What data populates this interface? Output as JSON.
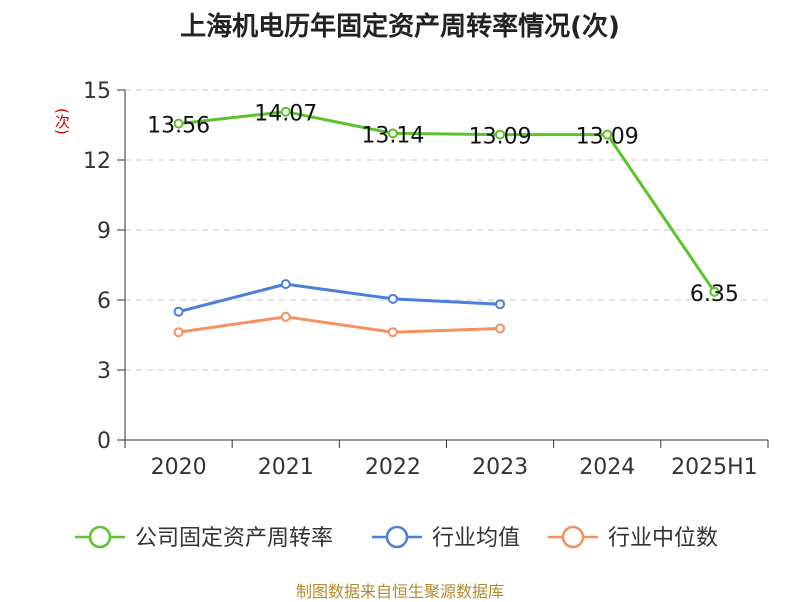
{
  "chart_data": {
    "type": "line",
    "title": "上海机电历年固定资产周转率情况(次)",
    "ylabel": "(次)",
    "ylim": [
      0,
      15
    ],
    "yticks": [
      0,
      3,
      6,
      9,
      12,
      15
    ],
    "grid": true,
    "legend_position": "bottom",
    "categories": [
      "2020",
      "2021",
      "2022",
      "2023",
      "2024",
      "2025H1"
    ],
    "series": [
      {
        "name": "公司固定资产周转率",
        "color": "#5cc328",
        "values": [
          13.56,
          14.07,
          13.14,
          13.09,
          13.09,
          6.35
        ],
        "labels": [
          "13.56",
          "14.07",
          "13.14",
          "13.09",
          "13.09",
          "6.35"
        ]
      },
      {
        "name": "行业均值",
        "color": "#4a7fdb",
        "values": [
          5.5,
          6.68,
          6.05,
          5.82,
          null,
          null
        ]
      },
      {
        "name": "行业中位数",
        "color": "#f5915e",
        "values": [
          4.62,
          5.28,
          4.62,
          4.78,
          null,
          null
        ]
      }
    ]
  },
  "source": "制图数据来自恒生聚源数据库"
}
